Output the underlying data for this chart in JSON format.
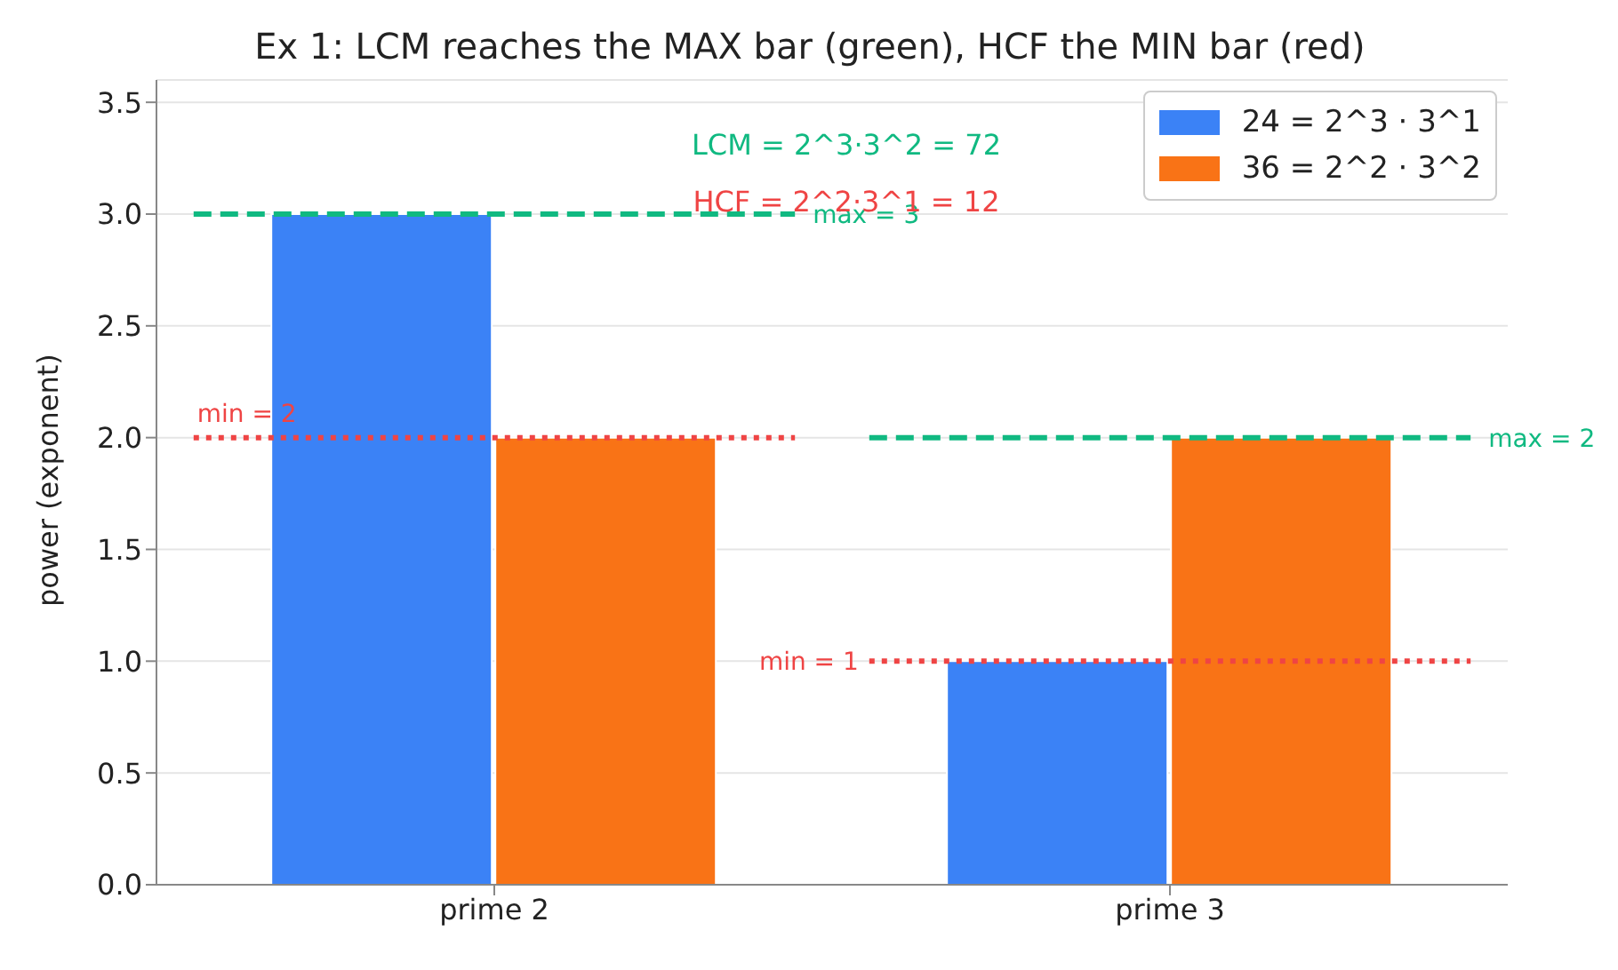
{
  "chart_data": {
    "type": "bar",
    "title": "Ex 1: LCM reaches the MAX bar (green), HCF the MIN bar (red)",
    "ylabel": "power (exponent)",
    "categories": [
      "prime 2",
      "prime 3"
    ],
    "series": [
      {
        "name": "24 = 2^3 · 3^1",
        "color": "#3b82f6",
        "values": [
          3,
          1
        ]
      },
      {
        "name": "36 = 2^2 · 3^2",
        "color": "#f97316",
        "values": [
          2,
          2
        ]
      }
    ],
    "ylim": [
      0,
      3.6
    ],
    "yticks": [
      {
        "value": 0,
        "label": "0.0"
      },
      0.5,
      {
        "value": 1,
        "label": "1.0"
      },
      1.5,
      {
        "value": 2,
        "label": "2.0"
      },
      2.5,
      {
        "value": 3,
        "label": "3.0"
      },
      3.5
    ],
    "grid": "y",
    "legend": "top right",
    "ref_lines": [
      {
        "axis": "y",
        "value": 3,
        "label": "max = 3",
        "color": "#10b981",
        "line_style": "dashed"
      },
      {
        "axis": "y",
        "value": 2,
        "label": "min = 2",
        "color": "#ef4444",
        "line_style": "dotted"
      },
      {
        "axis": "y",
        "value": 2,
        "label": "max = 2",
        "color": "#10b981",
        "line_style": "dashed"
      },
      {
        "axis": "y",
        "value": 1,
        "label": "min = 1",
        "color": "#ef4444",
        "line_style": "dotted"
      }
    ],
    "annotations": [
      "LCM = 2^3·3^2 = 72",
      "HCF = 2^2·3^1 = 12"
    ]
  }
}
